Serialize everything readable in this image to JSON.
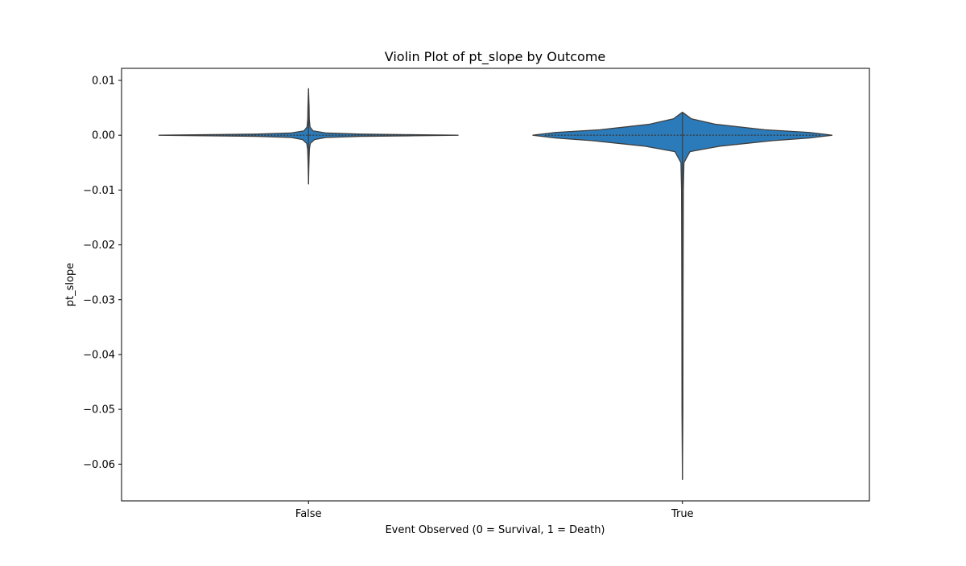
{
  "chart_data": {
    "type": "violin",
    "title": "Violin Plot of pt_slope by Outcome",
    "xlabel": "Event Observed (0 = Survival, 1 = Death)",
    "ylabel": "pt_slope",
    "categories": [
      "False",
      "True"
    ],
    "ylim": [
      -0.0667,
      0.0122
    ],
    "yticks": [
      0.01,
      0.0,
      -0.01,
      -0.02,
      -0.03,
      -0.04,
      -0.05,
      -0.06
    ],
    "ytick_labels": [
      "0.01",
      "0.00",
      "−0.01",
      "−0.02",
      "−0.03",
      "−0.04",
      "−0.05",
      "−0.06"
    ],
    "grid": false,
    "violin_color": "#2b7bba",
    "edge_color": "#3f3f3f",
    "series": [
      {
        "category": "False",
        "min": -0.0089,
        "max": 0.0085,
        "median": 0.0,
        "density": [
          [
            -0.0089,
            0.0
          ],
          [
            -0.006,
            0.002
          ],
          [
            -0.004,
            0.004
          ],
          [
            -0.0025,
            0.006
          ],
          [
            -0.0015,
            0.012
          ],
          [
            -0.0008,
            0.04
          ],
          [
            -0.0004,
            0.12
          ],
          [
            -0.0002,
            0.35
          ],
          [
            -0.0001,
            0.7
          ],
          [
            0.0,
            1.0
          ],
          [
            0.0001,
            0.7
          ],
          [
            0.0002,
            0.35
          ],
          [
            0.0004,
            0.12
          ],
          [
            0.0008,
            0.03
          ],
          [
            0.0015,
            0.01
          ],
          [
            0.003,
            0.005
          ],
          [
            0.005,
            0.004
          ],
          [
            0.0085,
            0.0
          ]
        ]
      },
      {
        "category": "True",
        "min": -0.0628,
        "max": 0.0042,
        "median": 0.0,
        "density": [
          [
            -0.0628,
            0.0
          ],
          [
            -0.05,
            0.003
          ],
          [
            -0.03,
            0.004
          ],
          [
            -0.01,
            0.006
          ],
          [
            -0.005,
            0.01
          ],
          [
            -0.003,
            0.05
          ],
          [
            -0.002,
            0.25
          ],
          [
            -0.001,
            0.6
          ],
          [
            -0.0005,
            0.85
          ],
          [
            0.0,
            1.0
          ],
          [
            0.0005,
            0.85
          ],
          [
            0.001,
            0.55
          ],
          [
            0.002,
            0.22
          ],
          [
            0.003,
            0.06
          ],
          [
            0.0042,
            0.0
          ]
        ]
      }
    ]
  }
}
